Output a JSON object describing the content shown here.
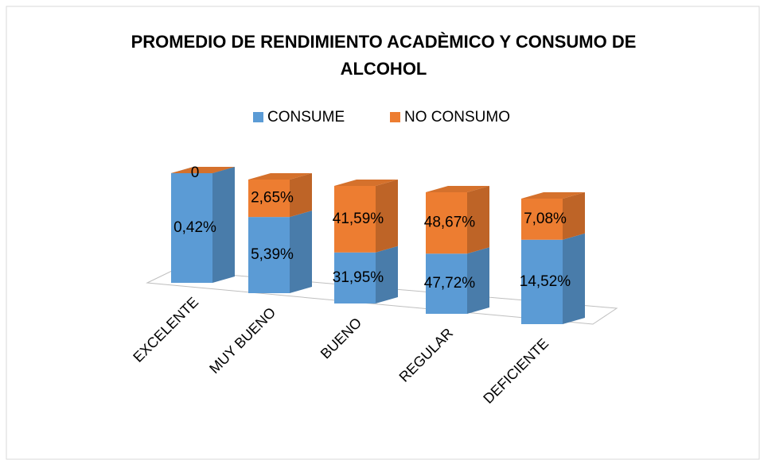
{
  "chart_data": {
    "type": "bar3d",
    "stacking": "percent",
    "title": "PROMEDIO DE RENDIMIENTO ACADÈMICO Y CONSUMO DE ALCOHOL",
    "categories": [
      "EXCELENTE",
      "MUY BUENO",
      "BUENO",
      "REGULAR",
      "DEFICIENTE"
    ],
    "series": [
      {
        "name": "CONSUME",
        "color": "#5b9bd5",
        "values": [
          0.42,
          5.39,
          31.95,
          47.72,
          14.52
        ],
        "value_labels": [
          "0,42%",
          "5,39%",
          "31,95%",
          "47,72%",
          "14,52%"
        ]
      },
      {
        "name": "NO CONSUMO",
        "color": "#ed7d31",
        "values": [
          0,
          2.65,
          41.59,
          48.67,
          7.08
        ],
        "value_labels": [
          "0",
          "2,65%",
          "41,59%",
          "48,67%",
          "7,08%"
        ]
      }
    ],
    "legend": "top"
  }
}
